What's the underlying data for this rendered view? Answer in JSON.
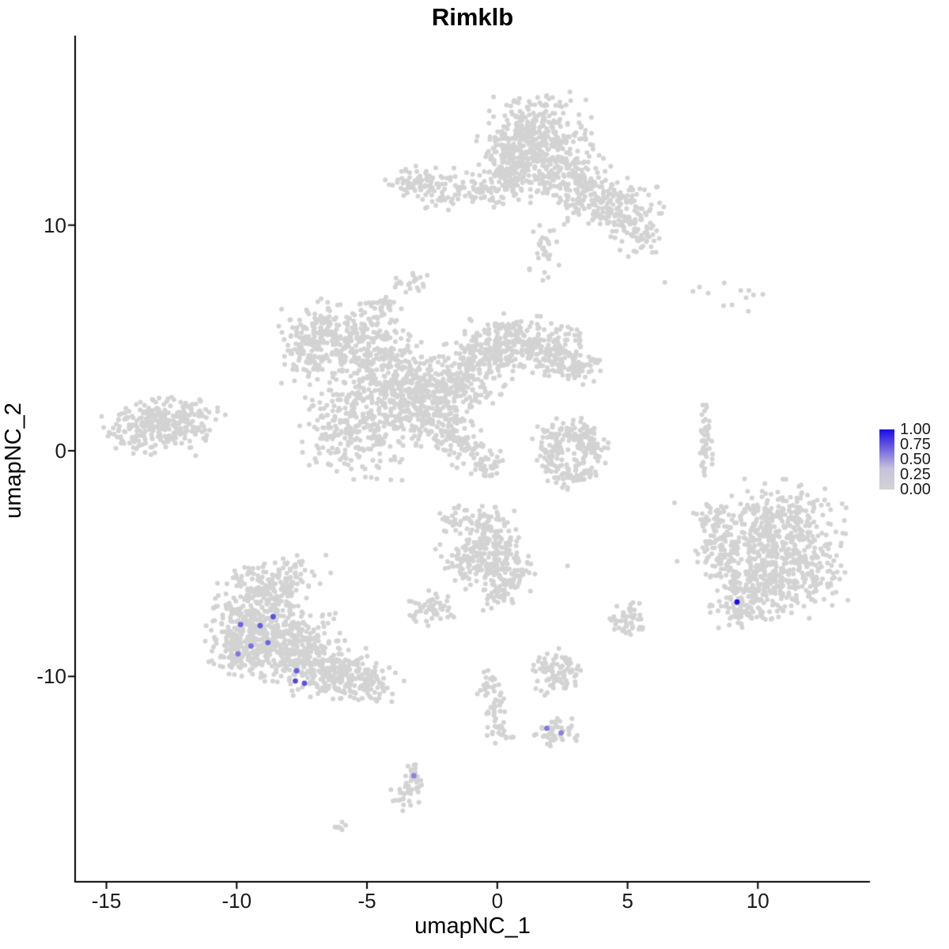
{
  "title": "Rimklb",
  "axes": {
    "x": {
      "label": "umapNC_1",
      "tick_labels": [
        "-15",
        "-10",
        "-5",
        "0",
        "5",
        "10"
      ],
      "tick_values": [
        -15,
        -10,
        -5,
        0,
        5,
        10
      ]
    },
    "y": {
      "label": "umapNC_2",
      "tick_labels": [
        "-10",
        "0",
        "10"
      ],
      "tick_values": [
        -10,
        0,
        10
      ]
    }
  },
  "legend": {
    "labels": [
      "1.00",
      "0.75",
      "0.50",
      "0.25",
      "0.00"
    ],
    "low_color": "#D3D3D3",
    "high_color": "#1A0DE8"
  },
  "colors": {
    "background": "#FFFFFF",
    "axis": "#000000",
    "text": "#1a1a1a",
    "point_grey": "#D3D3D3"
  },
  "chart_data": {
    "type": "scatter",
    "title": "Rimklb",
    "xlabel": "umapNC_1",
    "ylabel": "umapNC_2",
    "xlim": [
      -16.2,
      14.3
    ],
    "ylim": [
      -19.1,
      18.4
    ],
    "grid": false,
    "legend_position": "right",
    "point_radius_px": 3.0,
    "highlight_radius_px": 3.4,
    "seed": 42,
    "background_clusters": [
      [
        1.4,
        14.0,
        1.0,
        0.85,
        320
      ],
      [
        0.6,
        12.9,
        0.6,
        0.6,
        130
      ],
      [
        2.3,
        12.4,
        0.8,
        0.7,
        140
      ],
      [
        3.3,
        11.4,
        0.7,
        0.6,
        110
      ],
      [
        4.6,
        10.8,
        0.8,
        0.55,
        120
      ],
      [
        5.4,
        9.8,
        0.45,
        0.5,
        60
      ],
      [
        -1.6,
        11.6,
        1.1,
        0.4,
        100
      ],
      [
        -3.1,
        11.9,
        0.5,
        0.35,
        45
      ],
      [
        0.3,
        11.9,
        0.5,
        0.5,
        60
      ],
      [
        1.7,
        8.9,
        0.3,
        0.7,
        30
      ],
      [
        -6.6,
        5.2,
        0.8,
        0.7,
        170
      ],
      [
        -7.3,
        4.1,
        0.5,
        0.5,
        70
      ],
      [
        -4.8,
        4.6,
        0.8,
        0.7,
        150
      ],
      [
        -4.2,
        3.2,
        0.9,
        0.8,
        220
      ],
      [
        -5.6,
        1.0,
        0.9,
        1.0,
        260
      ],
      [
        -3.1,
        1.8,
        0.8,
        0.8,
        190
      ],
      [
        -1.6,
        3.0,
        0.9,
        0.7,
        200
      ],
      [
        -0.4,
        4.3,
        0.8,
        0.6,
        150
      ],
      [
        0.9,
        4.9,
        0.9,
        0.5,
        150
      ],
      [
        2.1,
        4.4,
        0.7,
        0.5,
        110
      ],
      [
        2.9,
        3.7,
        0.5,
        0.4,
        70
      ],
      [
        -2.1,
        1.0,
        0.5,
        0.5,
        80
      ],
      [
        -1.1,
        0.1,
        0.4,
        0.4,
        50
      ],
      [
        -0.3,
        -0.7,
        0.35,
        0.35,
        35
      ],
      [
        -4.5,
        6.5,
        0.35,
        0.3,
        30
      ],
      [
        -3.3,
        7.5,
        0.3,
        0.25,
        20
      ],
      [
        -13.4,
        1.0,
        0.8,
        0.6,
        180
      ],
      [
        -12.1,
        1.3,
        0.7,
        0.5,
        120
      ],
      [
        2.6,
        0.9,
        0.55,
        0.3,
        60
      ],
      [
        3.5,
        0.2,
        0.35,
        0.5,
        70
      ],
      [
        2.1,
        -0.2,
        0.3,
        0.45,
        50
      ],
      [
        2.9,
        -1.0,
        0.5,
        0.3,
        55
      ],
      [
        8.0,
        0.4,
        0.15,
        0.75,
        45
      ],
      [
        8.4,
        7.0,
        1.3,
        0.35,
        13
      ],
      [
        10.8,
        -3.4,
        1.1,
        0.9,
        290
      ],
      [
        11.6,
        -5.4,
        0.85,
        0.9,
        220
      ],
      [
        9.8,
        -5.7,
        0.75,
        0.8,
        180
      ],
      [
        8.7,
        -4.4,
        0.5,
        0.7,
        90
      ],
      [
        8.3,
        -3.1,
        0.3,
        0.45,
        40
      ],
      [
        9.4,
        -7.0,
        0.55,
        0.4,
        70
      ],
      [
        -8.7,
        -6.1,
        0.8,
        0.55,
        140
      ],
      [
        -9.6,
        -7.7,
        0.8,
        0.9,
        240
      ],
      [
        -8.2,
        -8.3,
        0.85,
        0.8,
        240
      ],
      [
        -7.2,
        -9.4,
        0.8,
        0.7,
        190
      ],
      [
        -6.0,
        -9.9,
        0.7,
        0.5,
        120
      ],
      [
        -4.9,
        -10.3,
        0.6,
        0.4,
        80
      ],
      [
        -10.0,
        -8.9,
        0.5,
        0.6,
        90
      ],
      [
        -8.0,
        -5.3,
        0.7,
        0.3,
        35
      ],
      [
        -0.5,
        -3.4,
        0.5,
        0.4,
        70
      ],
      [
        -0.2,
        -4.4,
        0.6,
        0.6,
        110
      ],
      [
        0.3,
        -5.5,
        0.5,
        0.5,
        90
      ],
      [
        -1.3,
        -5.0,
        0.45,
        0.5,
        60
      ],
      [
        -1.7,
        -3.0,
        0.3,
        0.3,
        25
      ],
      [
        0.0,
        -6.5,
        0.3,
        0.35,
        30
      ],
      [
        -2.6,
        -7.0,
        0.4,
        0.35,
        55
      ],
      [
        5.0,
        -7.5,
        0.35,
        0.4,
        50
      ],
      [
        2.3,
        -9.8,
        0.5,
        0.45,
        85
      ],
      [
        -0.4,
        -10.4,
        0.25,
        0.3,
        22
      ],
      [
        -0.1,
        -11.5,
        0.2,
        0.5,
        28
      ],
      [
        0.1,
        -12.4,
        0.25,
        0.3,
        18
      ],
      [
        2.3,
        -12.5,
        0.4,
        0.3,
        45
      ],
      [
        -3.2,
        -14.6,
        0.22,
        0.35,
        28
      ],
      [
        -3.5,
        -15.3,
        0.25,
        0.3,
        22
      ],
      [
        -6.1,
        -16.7,
        0.18,
        0.12,
        7
      ]
    ],
    "background_singles": [
      [
        6.8,
        -2.3
      ],
      [
        2.7,
        -5.1
      ],
      [
        6.9,
        -4.9
      ]
    ],
    "highlighted_points": [
      [
        -9.85,
        -7.7,
        0.55
      ],
      [
        -9.1,
        -7.75,
        0.6
      ],
      [
        -8.6,
        -7.35,
        0.65
      ],
      [
        -9.45,
        -8.65,
        0.5
      ],
      [
        -9.95,
        -9.0,
        0.45
      ],
      [
        -8.8,
        -8.5,
        0.55
      ],
      [
        -7.7,
        -9.75,
        0.6
      ],
      [
        -7.75,
        -10.2,
        0.7
      ],
      [
        -7.4,
        -10.3,
        0.65
      ],
      [
        9.2,
        -6.7,
        1.0
      ],
      [
        1.9,
        -12.3,
        0.45
      ],
      [
        2.45,
        -12.5,
        0.4
      ],
      [
        -3.2,
        -14.4,
        0.4
      ]
    ]
  }
}
